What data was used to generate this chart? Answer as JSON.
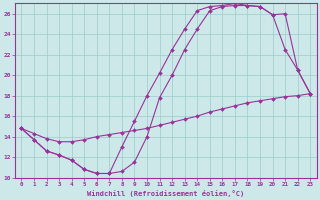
{
  "xlabel": "Windchill (Refroidissement éolien,°C)",
  "bg_color": "#cce8e8",
  "line_color": "#993399",
  "grid_color": "#99cccc",
  "xlim": [
    -0.5,
    23.5
  ],
  "ylim": [
    10,
    27
  ],
  "yticks": [
    10,
    12,
    14,
    16,
    18,
    20,
    22,
    24,
    26
  ],
  "xticks": [
    0,
    1,
    2,
    3,
    4,
    5,
    6,
    7,
    8,
    9,
    10,
    11,
    12,
    13,
    14,
    15,
    16,
    17,
    18,
    19,
    20,
    21,
    22,
    23
  ],
  "series": [
    {
      "x": [
        0,
        1,
        2,
        3,
        4,
        5,
        6,
        7,
        8,
        9,
        10,
        11,
        12,
        13,
        14,
        15,
        16,
        17,
        18,
        19,
        20,
        21,
        22,
        23
      ],
      "y": [
        14.8,
        13.7,
        12.6,
        12.2,
        11.7,
        10.8,
        10.4,
        10.4,
        13.0,
        15.5,
        18.0,
        20.2,
        22.5,
        24.5,
        26.3,
        26.7,
        26.8,
        27.0,
        26.8,
        26.7,
        25.9,
        26.0,
        20.5,
        18.2
      ]
    },
    {
      "x": [
        0,
        1,
        2,
        3,
        4,
        5,
        6,
        7,
        8,
        9,
        10,
        11,
        12,
        13,
        14,
        15,
        16,
        17,
        18,
        19,
        20,
        21,
        22,
        23
      ],
      "y": [
        14.8,
        13.7,
        12.6,
        12.2,
        11.7,
        10.8,
        10.4,
        10.4,
        10.6,
        11.5,
        14.0,
        17.8,
        20.0,
        22.5,
        24.5,
        26.3,
        26.7,
        26.8,
        26.8,
        26.7,
        25.9,
        22.5,
        20.5,
        18.2
      ]
    },
    {
      "x": [
        0,
        1,
        2,
        3,
        4,
        5,
        6,
        7,
        8,
        9,
        10,
        11,
        12,
        13,
        14,
        15,
        16,
        17,
        18,
        19,
        20,
        21,
        22,
        23
      ],
      "y": [
        14.8,
        14.3,
        13.8,
        13.5,
        13.5,
        13.7,
        14.0,
        14.2,
        14.4,
        14.6,
        14.8,
        15.1,
        15.4,
        15.7,
        16.0,
        16.4,
        16.7,
        17.0,
        17.3,
        17.5,
        17.7,
        17.9,
        18.0,
        18.2
      ]
    }
  ]
}
